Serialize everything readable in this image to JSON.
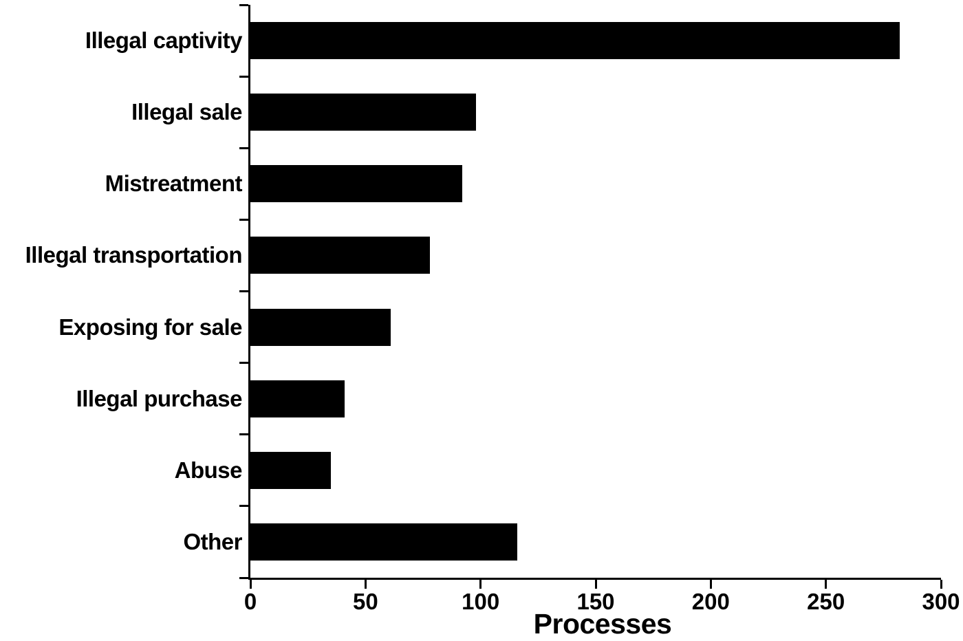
{
  "chart_data": {
    "type": "bar",
    "orientation": "horizontal",
    "title": "",
    "xlabel": "Processes",
    "ylabel": "",
    "categories": [
      "Illegal captivity",
      "Illegal sale",
      "Mistreatment",
      "Illegal transportation",
      "Exposing for sale",
      "Illegal purchase",
      "Abuse",
      "Other"
    ],
    "values": [
      282,
      98,
      92,
      78,
      61,
      41,
      35,
      116
    ],
    "xlim": [
      0,
      300
    ],
    "xticks": [
      "0",
      "50",
      "100",
      "150",
      "200",
      "250",
      "300"
    ],
    "xtick_values": [
      0,
      50,
      100,
      150,
      200,
      250,
      300
    ],
    "grid": false,
    "legend": "none",
    "bar_color": "#000000",
    "axis_color": "#000000",
    "background_color": "#ffffff"
  }
}
